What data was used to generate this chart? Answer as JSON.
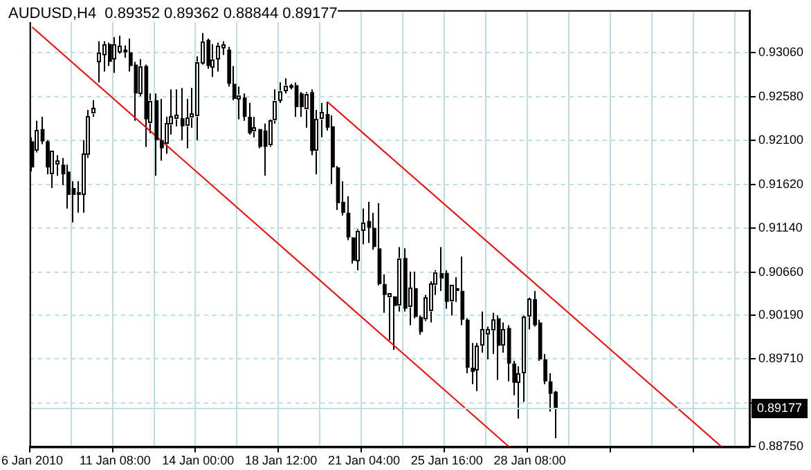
{
  "chart_data": {
    "type": "candlestick",
    "title": "AUDUSD,H4  0.89352 0.89362 0.88844 0.89177",
    "categories": [
      "6 Jan 2010",
      null,
      null,
      null,
      null,
      null,
      null,
      null,
      null,
      null,
      null,
      null,
      null,
      null,
      null,
      null,
      "11 Jan 08:00",
      null,
      null,
      null,
      null,
      null,
      null,
      null,
      null,
      null,
      null,
      null,
      null,
      null,
      null,
      null,
      "14 Jan 00:00",
      null,
      null,
      null,
      null,
      null,
      null,
      null,
      null,
      null,
      null,
      null,
      null,
      null,
      null,
      null,
      "18 Jan 12:00",
      null,
      null,
      null,
      null,
      null,
      null,
      null,
      null,
      null,
      null,
      null,
      null,
      null,
      null,
      null,
      "21 Jan 04:00",
      null,
      null,
      null,
      null,
      null,
      null,
      null,
      null,
      null,
      null,
      null,
      null,
      null,
      null,
      null,
      "25 Jan 16:00",
      null,
      null,
      null,
      null,
      null,
      null,
      null,
      null,
      null,
      null,
      null,
      null,
      null,
      null,
      null,
      "28 Jan 08:00",
      null,
      null,
      null,
      null,
      null,
      null,
      null,
      null,
      null,
      null,
      null,
      null,
      null,
      null,
      null,
      null,
      null,
      null,
      null,
      null,
      null,
      null,
      null,
      null,
      null,
      null,
      null,
      null,
      null,
      null,
      null,
      null,
      null,
      null,
      null,
      null,
      null,
      null,
      null,
      null,
      null,
      null
    ],
    "ohlc": [
      [
        0.9209,
        0.92135,
        0.9176,
        0.91805
      ],
      [
        0.91985,
        0.92315,
        0.9197,
        0.9221
      ],
      [
        0.92225,
        0.9236,
        0.9206,
        0.9209
      ],
      [
        0.9209,
        0.92105,
        0.9173,
        0.91805
      ],
      [
        0.9173,
        0.91985,
        0.9158,
        0.91985
      ],
      [
        0.91835,
        0.9194,
        0.91715,
        0.9188
      ],
      [
        0.91835,
        0.9191,
        0.9161,
        0.9173
      ],
      [
        0.9176,
        0.91835,
        0.91355,
        0.91505
      ],
      [
        0.9158,
        0.91655,
        0.91205,
        0.91505
      ],
      [
        0.91535,
        0.91655,
        0.9131,
        0.91505
      ],
      [
        0.91505,
        0.92105,
        0.9131,
        0.91955
      ],
      [
        0.9194,
        0.92435,
        0.9191,
        0.9236
      ],
      [
        0.9239,
        0.9254,
        0.9236,
        0.9245
      ],
      [
        0.9296,
        0.93185,
        0.92735,
        0.93065
      ],
      [
        0.93035,
        0.93185,
        0.92855,
        0.93155
      ],
      [
        0.93155,
        0.9317,
        0.92915,
        0.9296
      ],
      [
        0.9299,
        0.9323,
        0.9284,
        0.93155
      ],
      [
        0.93065,
        0.93245,
        0.9305,
        0.9314
      ],
      [
        0.93095,
        0.9314,
        0.93005,
        0.93065
      ],
      [
        0.93065,
        0.93215,
        0.92855,
        0.92915
      ],
      [
        0.9293,
        0.9296,
        0.92315,
        0.92615
      ],
      [
        0.92615,
        0.9299,
        0.92585,
        0.92915
      ],
      [
        0.92915,
        0.9293,
        0.9203,
        0.9233
      ],
      [
        0.92285,
        0.92615,
        0.9218,
        0.9254
      ],
      [
        0.9254,
        0.92615,
        0.91715,
        0.92105
      ],
      [
        0.92105,
        0.92555,
        0.9188,
        0.92015
      ],
      [
        0.9206,
        0.9236,
        0.91955,
        0.92285
      ],
      [
        0.9227,
        0.9266,
        0.92165,
        0.9236
      ],
      [
        0.9233,
        0.9266,
        0.92255,
        0.9236
      ],
      [
        0.92345,
        0.92675,
        0.92105,
        0.92255
      ],
      [
        0.92255,
        0.92555,
        0.92015,
        0.92345
      ],
      [
        0.92345,
        0.92675,
        0.9224,
        0.9239
      ],
      [
        0.9236,
        0.9302,
        0.92105,
        0.9296
      ],
      [
        0.92945,
        0.93275,
        0.9293,
        0.93185
      ],
      [
        0.932,
        0.93215,
        0.92885,
        0.92915
      ],
      [
        0.929,
        0.93155,
        0.92795,
        0.9299
      ],
      [
        0.9299,
        0.9317,
        0.92855,
        0.9314
      ],
      [
        0.9311,
        0.93185,
        0.93035,
        0.93155
      ],
      [
        0.93095,
        0.93125,
        0.9269,
        0.9272
      ],
      [
        0.9272,
        0.92915,
        0.9254,
        0.92555
      ],
      [
        0.92555,
        0.9269,
        0.9233,
        0.92585
      ],
      [
        0.9257,
        0.92615,
        0.92315,
        0.9236
      ],
      [
        0.9236,
        0.9251,
        0.92165,
        0.9218
      ],
      [
        0.92195,
        0.9236,
        0.92135,
        0.92225
      ],
      [
        0.92225,
        0.92225,
        0.92015,
        0.9203
      ],
      [
        0.9221,
        0.92285,
        0.91715,
        0.9203
      ],
      [
        0.92045,
        0.9233,
        0.9203,
        0.92315
      ],
      [
        0.92315,
        0.9266,
        0.92285,
        0.9254
      ],
      [
        0.9254,
        0.92735,
        0.9251,
        0.92645
      ],
      [
        0.92645,
        0.9278,
        0.92615,
        0.92705
      ],
      [
        0.92705,
        0.9272,
        0.9266,
        0.92675
      ],
      [
        0.92705,
        0.92735,
        0.9236,
        0.92465
      ],
      [
        0.92615,
        0.9263,
        0.9236,
        0.92465
      ],
      [
        0.92435,
        0.9263,
        0.9224,
        0.92615
      ],
      [
        0.9263,
        0.9266,
        0.9194,
        0.91985
      ],
      [
        0.91985,
        0.92435,
        0.9173,
        0.9233
      ],
      [
        0.9233,
        0.9251,
        0.92135,
        0.92405
      ],
      [
        0.9239,
        0.92525,
        0.9221,
        0.9224
      ],
      [
        0.92255,
        0.92375,
        0.91625,
        0.91805
      ],
      [
        0.91805,
        0.9182,
        0.9134,
        0.91415
      ],
      [
        0.9143,
        0.91655,
        0.9128,
        0.9131
      ],
      [
        0.9131,
        0.9149,
        0.9101,
        0.9104
      ],
      [
        0.9104,
        0.9104,
        0.90755,
        0.90785
      ],
      [
        0.90785,
        0.9113,
        0.9068,
        0.91115
      ],
      [
        0.91115,
        0.91355,
        0.90965,
        0.91205
      ],
      [
        0.9122,
        0.9143,
        0.9098,
        0.91145
      ],
      [
        0.91145,
        0.9131,
        0.90905,
        0.90935
      ],
      [
        0.9092,
        0.91415,
        0.90515,
        0.9053
      ],
      [
        0.9053,
        0.90635,
        0.90215,
        0.9041
      ],
      [
        0.9038,
        0.9041,
        0.89915,
        0.9041
      ],
      [
        0.90395,
        0.90395,
        0.8981,
        0.9029
      ],
      [
        0.9029,
        0.90935,
        0.9023,
        0.90815
      ],
      [
        0.90815,
        0.9092,
        0.9023,
        0.9026
      ],
      [
        0.90275,
        0.90665,
        0.9008,
        0.90485
      ],
      [
        0.90485,
        0.90665,
        0.90155,
        0.9017
      ],
      [
        0.9017,
        0.90185,
        0.89975,
        0.90005
      ],
      [
        0.9014,
        0.9041,
        0.90125,
        0.9038
      ],
      [
        0.9023,
        0.9056,
        0.9011,
        0.9053
      ],
      [
        0.90515,
        0.9068,
        0.9041,
        0.90665
      ],
      [
        0.9065,
        0.90935,
        0.90455,
        0.9059
      ],
      [
        0.9065,
        0.9068,
        0.9026,
        0.90335
      ],
      [
        0.90335,
        0.90515,
        0.90185,
        0.90515
      ],
      [
        0.90485,
        0.90605,
        0.90335,
        0.90455
      ],
      [
        0.90455,
        0.9083,
        0.9008,
        0.9014
      ],
      [
        0.9014,
        0.90155,
        0.89555,
        0.89615
      ],
      [
        0.89615,
        0.89885,
        0.89435,
        0.8957
      ],
      [
        0.89585,
        0.89885,
        0.8936,
        0.89855
      ],
      [
        0.89855,
        0.9023,
        0.8978,
        0.90035
      ],
      [
        0.89975,
        0.90065,
        0.89705,
        0.90035
      ],
      [
        0.9002,
        0.90215,
        0.89765,
        0.9014
      ],
      [
        0.90155,
        0.90185,
        0.8948,
        0.89855
      ],
      [
        0.89855,
        0.9011,
        0.8978,
        0.90035
      ],
      [
        0.9005,
        0.9008,
        0.89465,
        0.8966
      ],
      [
        0.8966,
        0.8969,
        0.89315,
        0.8945
      ],
      [
        0.8945,
        0.8963,
        0.8906,
        0.89555
      ],
      [
        0.89555,
        0.90185,
        0.8924,
        0.9017
      ],
      [
        0.9017,
        0.9038,
        0.90035,
        0.90365
      ],
      [
        0.90365,
        0.90455,
        0.90065,
        0.9008
      ],
      [
        0.9011,
        0.9014,
        0.8969,
        0.89705
      ],
      [
        0.89705,
        0.89765,
        0.89435,
        0.89465
      ],
      [
        0.89465,
        0.89555,
        0.89135,
        0.8933
      ],
      [
        0.89352,
        0.89362,
        0.88844,
        0.89177
      ],
      null,
      null,
      null,
      null,
      null,
      null,
      null,
      null,
      null,
      null,
      null,
      null,
      null,
      null,
      null,
      null,
      null,
      null,
      null,
      null,
      null,
      null,
      null,
      null,
      null,
      null,
      null,
      null,
      null,
      null,
      null,
      null,
      null,
      null,
      null,
      null,
      null
    ],
    "series": [
      {
        "type": "line",
        "color": "#ff0000",
        "values": [
          0.9334,
          null,
          null,
          null,
          null,
          null,
          null,
          null,
          null,
          null,
          null,
          null,
          null,
          null,
          null,
          null,
          null,
          null,
          null,
          null,
          null,
          null,
          null,
          null,
          null,
          null,
          null,
          null,
          null,
          null,
          null,
          null,
          null,
          null,
          null,
          null,
          null,
          null,
          null,
          null,
          null,
          null,
          null,
          null,
          null,
          null,
          null,
          null,
          null,
          null,
          null,
          null,
          null,
          null,
          null,
          null,
          null,
          null,
          null,
          null,
          null,
          null,
          null,
          null,
          null,
          null,
          null,
          null,
          null,
          null,
          null,
          null,
          null,
          null,
          null,
          null,
          null,
          null,
          null,
          null,
          null,
          null,
          null,
          null,
          null,
          null,
          null,
          null,
          null,
          null,
          null,
          null,
          0.8875,
          null,
          null,
          null,
          null,
          null,
          null,
          null,
          null,
          null,
          null,
          null,
          null,
          null,
          null,
          null,
          null,
          null,
          null,
          null,
          null,
          null,
          null,
          null,
          null,
          null,
          null,
          null,
          null,
          null,
          null,
          null,
          null,
          null,
          null,
          null,
          null,
          null,
          null,
          null,
          null,
          null,
          null,
          null,
          null,
          null,
          null
        ]
      },
      {
        "type": "line",
        "color": "#ff0000",
        "values": [
          null,
          null,
          null,
          null,
          null,
          null,
          null,
          null,
          null,
          null,
          null,
          null,
          null,
          null,
          null,
          null,
          null,
          null,
          null,
          null,
          null,
          null,
          null,
          null,
          null,
          null,
          null,
          null,
          null,
          null,
          null,
          null,
          null,
          null,
          null,
          null,
          null,
          null,
          null,
          null,
          null,
          null,
          null,
          null,
          null,
          null,
          null,
          null,
          null,
          null,
          null,
          null,
          null,
          null,
          null,
          null,
          null,
          0.9252,
          null,
          null,
          null,
          null,
          null,
          null,
          null,
          null,
          null,
          null,
          null,
          null,
          null,
          null,
          null,
          null,
          null,
          null,
          null,
          null,
          null,
          null,
          null,
          null,
          null,
          null,
          null,
          null,
          null,
          null,
          null,
          null,
          null,
          null,
          null,
          null,
          null,
          null,
          null,
          null,
          null,
          null,
          null,
          null,
          null,
          null,
          null,
          null,
          null,
          null,
          null,
          null,
          null,
          null,
          null,
          null,
          null,
          null,
          null,
          null,
          null,
          null,
          null,
          null,
          null,
          null,
          null,
          null,
          null,
          null,
          null,
          null,
          null,
          null,
          null,
          0.8875,
          null,
          null,
          null,
          null,
          null
        ]
      }
    ],
    "ylim": [
      0.8875,
      0.93525
    ],
    "yticks": [
      {
        "value": 0.9306,
        "label": "0.93060"
      },
      {
        "value": 0.9258,
        "label": "0.92580"
      },
      {
        "value": 0.921,
        "label": "0.92100"
      },
      {
        "value": 0.9162,
        "label": "0.91620"
      },
      {
        "value": 0.9114,
        "label": "0.91140"
      },
      {
        "value": 0.9066,
        "label": "0.90660"
      },
      {
        "value": 0.9019,
        "label": "0.90190"
      },
      {
        "value": 0.8971,
        "label": "0.89710"
      },
      {
        "value": 0.8923,
        "label": null
      },
      {
        "value": 0.8875,
        "label": "0.88750"
      }
    ],
    "ref_lines": [
      {
        "axis": "y",
        "value": 0.89177,
        "label": "0.89177",
        "color": "#c0dcdc"
      }
    ],
    "grid": true,
    "legend": false
  }
}
